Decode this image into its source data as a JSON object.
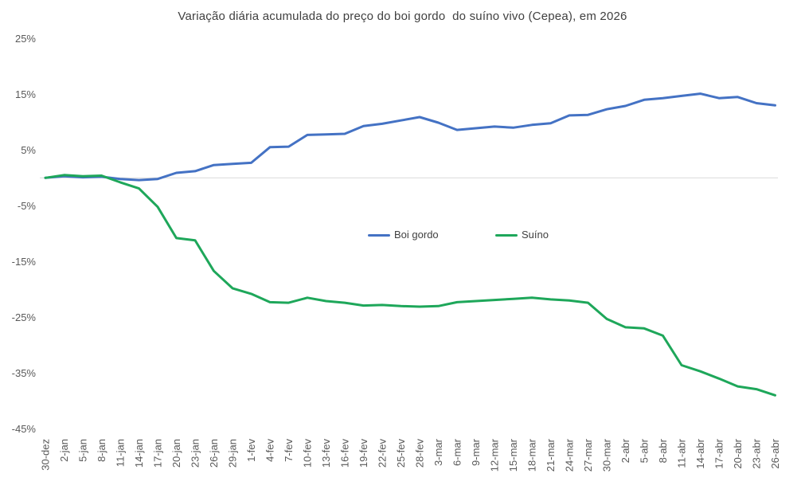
{
  "chart_data": {
    "type": "line",
    "title": "Variação diária acumulada do preço do boi gordo  do suíno vivo (Cepea), em 2026",
    "categories": [
      "30-dez",
      "2-jan",
      "5-jan",
      "8-jan",
      "11-jan",
      "14-jan",
      "17-jan",
      "20-jan",
      "23-jan",
      "26-jan",
      "29-jan",
      "1-fev",
      "4-fev",
      "7-fev",
      "10-fev",
      "13-fev",
      "16-fev",
      "19-fev",
      "22-fev",
      "25-fev",
      "28-fev",
      "3-mar",
      "6-mar",
      "9-mar",
      "12-mar",
      "15-mar",
      "18-mar",
      "21-mar",
      "24-mar",
      "27-mar",
      "30-mar",
      "2-abr",
      "5-abr",
      "8-abr",
      "11-abr",
      "14-abr",
      "17-abr",
      "20-abr",
      "23-abr",
      "26-abr"
    ],
    "series": [
      {
        "name": "Boi gordo",
        "color": "#4472C4",
        "values": [
          0,
          0.3,
          0.1,
          0.2,
          -0.2,
          -0.4,
          -0.2,
          0.9,
          1.2,
          2.3,
          2.5,
          2.7,
          5.5,
          5.6,
          7.7,
          7.8,
          7.9,
          9.3,
          9.7,
          10.3,
          10.9,
          9.9,
          8.6,
          8.9,
          9.2,
          9.0,
          9.5,
          9.8,
          11.2,
          11.3,
          12.3,
          12.9,
          14.0,
          14.3,
          14.7,
          15.1,
          14.3,
          14.5,
          13.4,
          13.0
        ]
      },
      {
        "name": "Suíno",
        "color": "#1EA75A",
        "values": [
          0,
          0.5,
          0.3,
          0.4,
          -0.8,
          -1.9,
          -5.2,
          -10.8,
          -11.2,
          -16.7,
          -19.8,
          -20.8,
          -22.3,
          -22.4,
          -21.5,
          -22.1,
          -22.4,
          -22.9,
          -22.8,
          -23.0,
          -23.1,
          -23.0,
          -22.3,
          -22.1,
          -21.9,
          -21.7,
          -21.5,
          -21.8,
          -22.0,
          -22.4,
          -25.3,
          -26.8,
          -27.0,
          -28.3,
          -33.6,
          -34.7,
          -36.0,
          -37.4,
          -37.9,
          -39.0
        ]
      }
    ],
    "xlabel": "",
    "ylabel": "",
    "ylim": [
      -45,
      25
    ],
    "yticks": [
      25,
      15,
      5,
      -5,
      -15,
      -25,
      -35,
      -45
    ],
    "ytick_labels": [
      "25%",
      "15%",
      "5%",
      "-5%",
      "-15%",
      "-25%",
      "-35%",
      "-45%"
    ],
    "grid": "zero-line-only",
    "zero_line_color": "#D9D9D9",
    "axis_label_color": "#595959",
    "title_color": "#404040",
    "legend_position": "inside-center"
  }
}
